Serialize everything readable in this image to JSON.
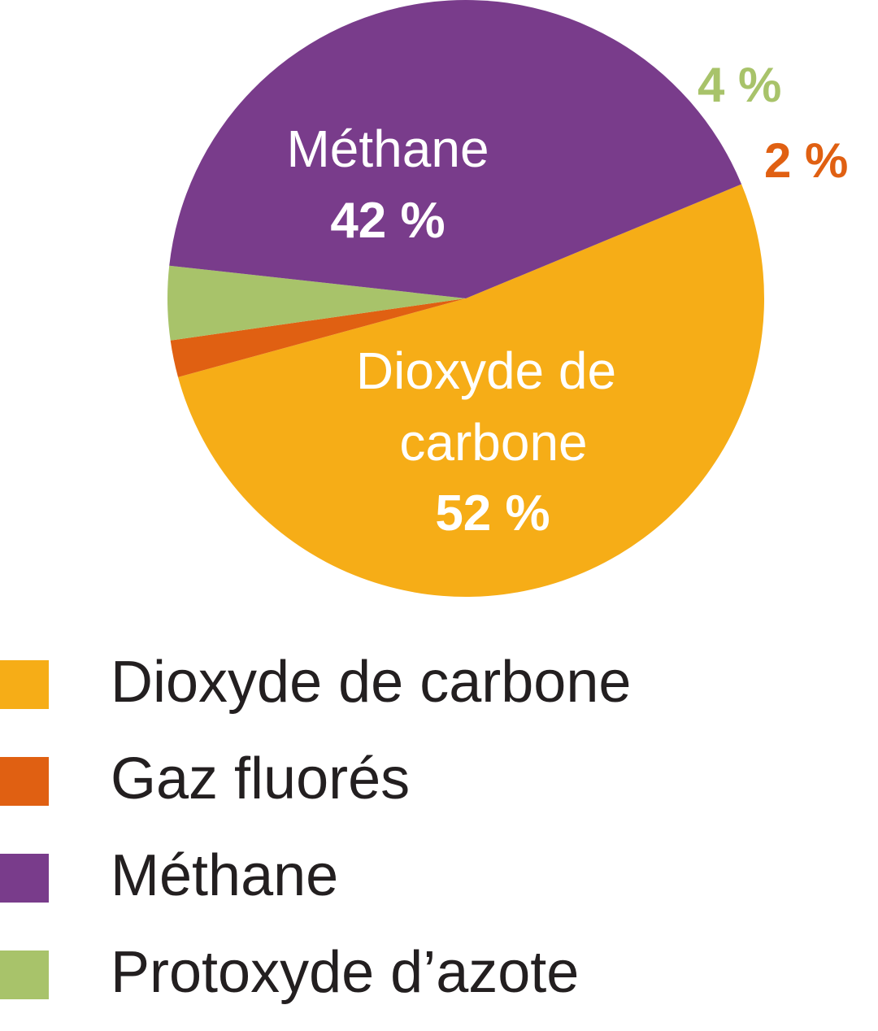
{
  "chart_data": {
    "type": "pie",
    "slices": [
      {
        "name": "Dioxyde de carbone",
        "value": 52,
        "value_label": "52 %",
        "color": "#f6ad17",
        "name_lines": [
          "Dioxyde de",
          "carbone"
        ]
      },
      {
        "name": "Gaz fluorés",
        "value": 2,
        "value_label": "2 %",
        "color": "#e06012"
      },
      {
        "name": "Protoxyde d’azote",
        "value": 4,
        "value_label": "4 %",
        "color": "#a8c36a"
      },
      {
        "name": "Méthane",
        "value": 42,
        "value_label": "42 %",
        "color": "#793c8b",
        "name_lines": [
          "Méthane"
        ]
      }
    ],
    "legend": [
      {
        "label": "Dioxyde de carbone",
        "color": "#f6ad17"
      },
      {
        "label": "Gaz fluorés",
        "color": "#e06012"
      },
      {
        "label": "Méthane",
        "color": "#793c8b"
      },
      {
        "label": "Protoxyde d’azote",
        "color": "#a8c36a"
      }
    ],
    "legend_position": "bottom-left"
  }
}
